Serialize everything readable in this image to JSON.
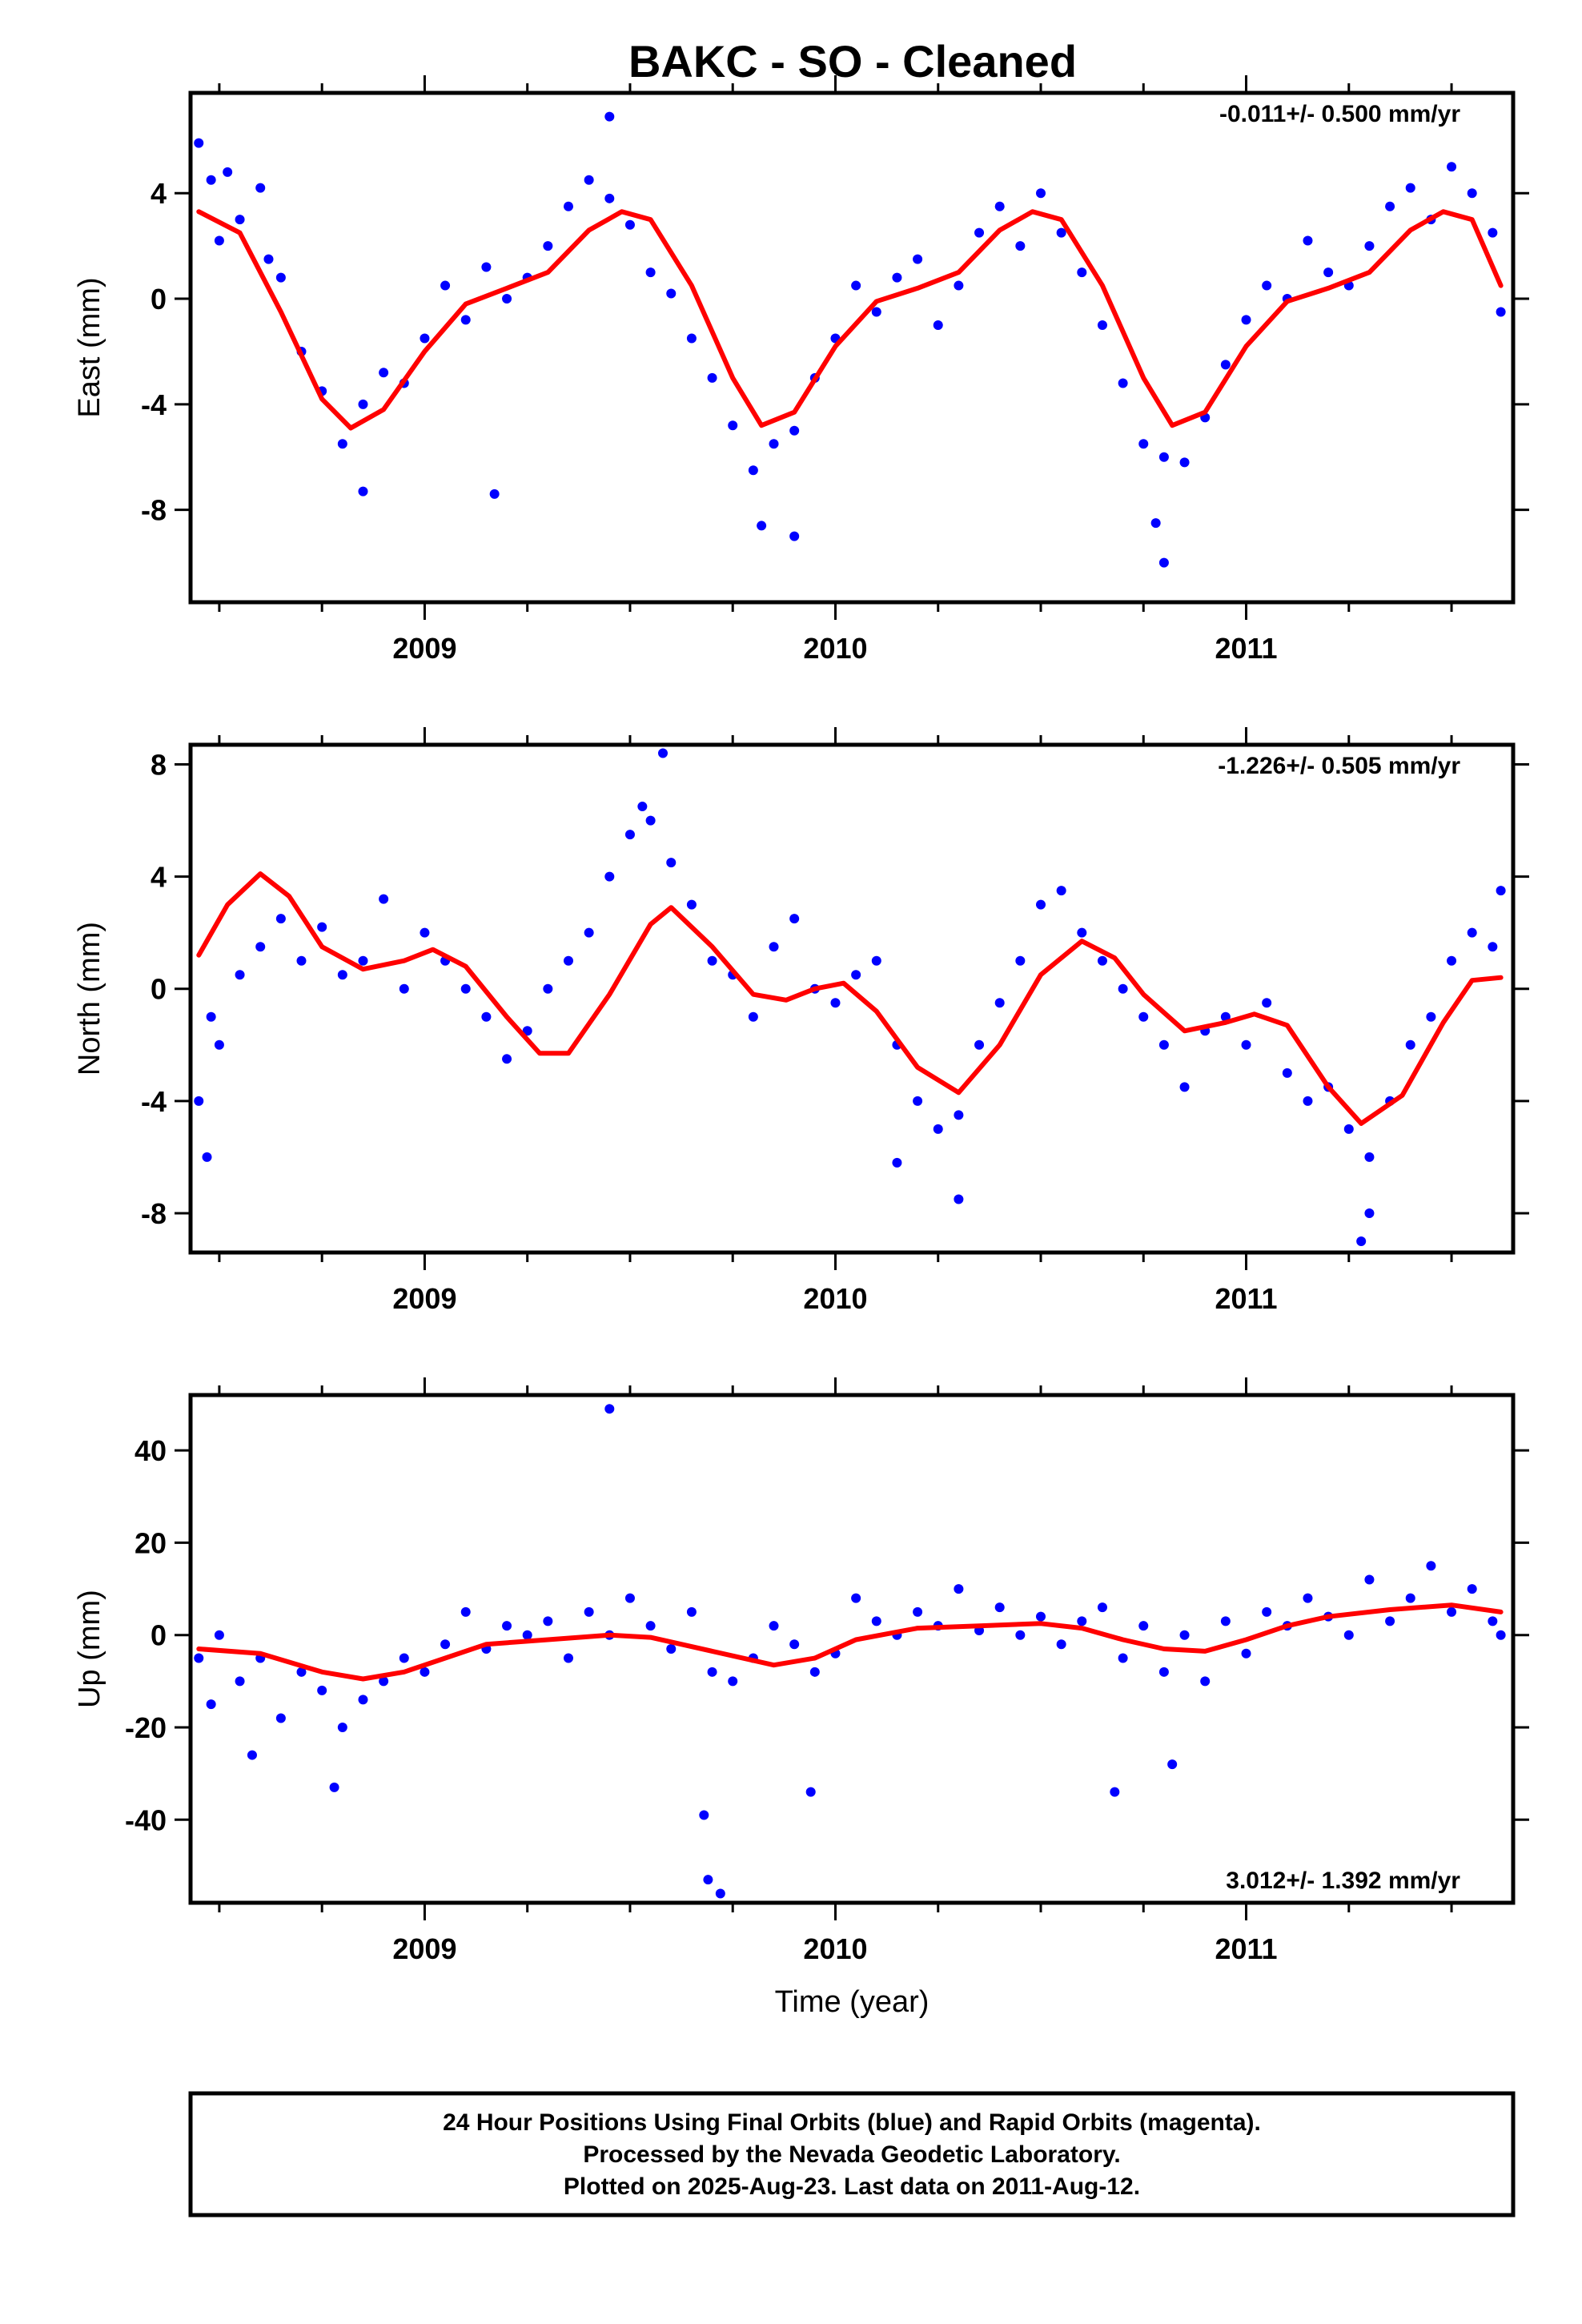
{
  "title": "BAKC  - SO - Cleaned",
  "footer": {
    "lines": [
      "24 Hour Positions Using Final Orbits (blue) and Rapid Orbits (magenta).",
      "Processed by the Nevada Geodetic Laboratory.",
      "Plotted on 2025-Aug-23. Last data on 2011-Aug-12."
    ]
  },
  "colors": {
    "points": "#0000ff",
    "fit": "#ff0000",
    "frame": "#000000"
  },
  "chart_data": [
    {
      "type": "scatter",
      "ylabel": "East (mm)",
      "xlabel": "",
      "rate_label": "-0.011+/- 0.500 mm/yr",
      "rate_position": "top-right",
      "xlim": [
        2008.43,
        2011.65
      ],
      "ylim": [
        -11.5,
        7.8
      ],
      "yticks": [
        4,
        0,
        -4,
        -8
      ],
      "xticks": [
        2009,
        2010,
        2011
      ],
      "fit_x": [
        2008.45,
        2008.55,
        2008.65,
        2008.75,
        2008.82,
        2008.9,
        2009.0,
        2009.1,
        2009.2,
        2009.3,
        2009.4,
        2009.48,
        2009.55,
        2009.65,
        2009.75,
        2009.82,
        2009.9,
        2010.0,
        2010.1,
        2010.2,
        2010.3,
        2010.4,
        2010.48,
        2010.55,
        2010.65,
        2010.75,
        2010.82,
        2010.9,
        2011.0,
        2011.1,
        2011.2,
        2011.3,
        2011.4,
        2011.48,
        2011.55,
        2011.62
      ],
      "fit_y": [
        3.3,
        2.5,
        -0.5,
        -3.8,
        -4.9,
        -4.2,
        -2.0,
        -0.2,
        0.4,
        1.0,
        2.6,
        3.3,
        3.0,
        0.5,
        -3.0,
        -4.8,
        -4.3,
        -1.8,
        -0.1,
        0.4,
        1.0,
        2.6,
        3.3,
        3.0,
        0.5,
        -3.0,
        -4.8,
        -4.3,
        -1.8,
        -0.1,
        0.4,
        1.0,
        2.6,
        3.3,
        3.0,
        0.5
      ],
      "x": [
        2008.45,
        2008.48,
        2008.5,
        2008.52,
        2008.55,
        2008.6,
        2008.62,
        2008.65,
        2008.7,
        2008.75,
        2008.8,
        2008.85,
        2008.9,
        2008.95,
        2009.0,
        2009.05,
        2009.1,
        2009.15,
        2009.2,
        2009.25,
        2009.3,
        2009.35,
        2009.4,
        2009.45,
        2009.5,
        2009.55,
        2009.6,
        2009.65,
        2009.7,
        2009.75,
        2009.8,
        2009.85,
        2009.9,
        2009.95,
        2010.0,
        2010.05,
        2010.1,
        2010.15,
        2010.2,
        2010.25,
        2010.3,
        2010.35,
        2010.4,
        2010.45,
        2010.5,
        2010.55,
        2010.6,
        2010.65,
        2010.7,
        2010.75,
        2010.8,
        2010.85,
        2010.9,
        2010.95,
        2011.0,
        2011.05,
        2011.1,
        2011.15,
        2011.2,
        2011.25,
        2011.3,
        2011.35,
        2011.4,
        2011.45,
        2011.5,
        2011.55,
        2011.6,
        2011.62,
        2009.45,
        2010.8,
        2010.78,
        2009.82,
        2009.9,
        2008.85,
        2009.17
      ],
      "y": [
        5.9,
        4.5,
        2.2,
        4.8,
        3.0,
        4.2,
        1.5,
        0.8,
        -2.0,
        -3.5,
        -5.5,
        -4.0,
        -2.8,
        -3.2,
        -1.5,
        0.5,
        -0.8,
        1.2,
        0.0,
        0.8,
        2.0,
        3.5,
        4.5,
        3.8,
        2.8,
        1.0,
        0.2,
        -1.5,
        -3.0,
        -4.8,
        -6.5,
        -5.5,
        -5.0,
        -3.0,
        -1.5,
        0.5,
        -0.5,
        0.8,
        1.5,
        -1.0,
        0.5,
        2.5,
        3.5,
        2.0,
        4.0,
        2.5,
        1.0,
        -1.0,
        -3.2,
        -5.5,
        -6.0,
        -6.2,
        -4.5,
        -2.5,
        -0.8,
        0.5,
        0.0,
        2.2,
        1.0,
        0.5,
        2.0,
        3.5,
        4.2,
        3.0,
        5.0,
        4.0,
        2.5,
        -0.5,
        6.9,
        -10.0,
        -8.5,
        -8.6,
        -9.0,
        -7.3,
        -7.4
      ]
    },
    {
      "type": "scatter",
      "ylabel": "North (mm)",
      "xlabel": "",
      "rate_label": "-1.226+/- 0.505 mm/yr",
      "rate_position": "top-right",
      "xlim": [
        2008.43,
        2011.65
      ],
      "ylim": [
        -9.4,
        8.7
      ],
      "yticks": [
        8,
        4,
        0,
        -4,
        -8
      ],
      "xticks": [
        2009,
        2010,
        2011
      ],
      "fit_x": [
        2008.45,
        2008.52,
        2008.6,
        2008.67,
        2008.75,
        2008.85,
        2008.95,
        2009.02,
        2009.1,
        2009.2,
        2009.28,
        2009.35,
        2009.45,
        2009.55,
        2009.6,
        2009.7,
        2009.8,
        2009.88,
        2009.95,
        2010.02,
        2010.1,
        2010.2,
        2010.3,
        2010.4,
        2010.5,
        2010.6,
        2010.68,
        2010.75,
        2010.85,
        2010.95,
        2011.02,
        2011.1,
        2011.2,
        2011.28,
        2011.38,
        2011.48,
        2011.55,
        2011.62
      ],
      "fit_y": [
        1.2,
        3.0,
        4.1,
        3.3,
        1.5,
        0.7,
        1.0,
        1.4,
        0.8,
        -1.0,
        -2.3,
        -2.3,
        -0.2,
        2.3,
        2.9,
        1.5,
        -0.2,
        -0.4,
        0.0,
        0.2,
        -0.8,
        -2.8,
        -3.7,
        -2.0,
        0.5,
        1.7,
        1.1,
        -0.2,
        -1.5,
        -1.2,
        -0.9,
        -1.3,
        -3.5,
        -4.8,
        -3.8,
        -1.2,
        0.3,
        0.4
      ],
      "x": [
        2008.45,
        2008.48,
        2008.5,
        2008.55,
        2008.6,
        2008.65,
        2008.7,
        2008.75,
        2008.8,
        2008.85,
        2008.9,
        2008.95,
        2009.0,
        2009.05,
        2009.1,
        2009.15,
        2009.2,
        2009.25,
        2009.3,
        2009.35,
        2009.4,
        2009.45,
        2009.5,
        2009.55,
        2009.6,
        2009.65,
        2009.7,
        2009.75,
        2009.8,
        2009.85,
        2009.9,
        2009.95,
        2010.0,
        2010.05,
        2010.1,
        2010.15,
        2010.2,
        2010.25,
        2010.3,
        2010.35,
        2010.4,
        2010.45,
        2010.5,
        2010.55,
        2010.6,
        2010.65,
        2010.7,
        2010.75,
        2010.8,
        2010.85,
        2010.9,
        2010.95,
        2011.0,
        2011.05,
        2011.1,
        2011.15,
        2011.2,
        2011.25,
        2011.3,
        2011.35,
        2011.4,
        2011.45,
        2011.5,
        2011.55,
        2011.6,
        2011.62,
        2008.47,
        2009.58,
        2009.53,
        2010.15,
        2010.3,
        2011.3,
        2011.28
      ],
      "y": [
        -4.0,
        -1.0,
        -2.0,
        0.5,
        1.5,
        2.5,
        1.0,
        2.2,
        0.5,
        1.0,
        3.2,
        0.0,
        2.0,
        1.0,
        0.0,
        -1.0,
        -2.5,
        -1.5,
        0.0,
        1.0,
        2.0,
        4.0,
        5.5,
        6.0,
        4.5,
        3.0,
        1.0,
        0.5,
        -1.0,
        1.5,
        2.5,
        0.0,
        -0.5,
        0.5,
        1.0,
        -2.0,
        -4.0,
        -5.0,
        -4.5,
        -2.0,
        -0.5,
        1.0,
        3.0,
        3.5,
        2.0,
        1.0,
        0.0,
        -1.0,
        -2.0,
        -3.5,
        -1.5,
        -1.0,
        -2.0,
        -0.5,
        -3.0,
        -4.0,
        -3.5,
        -5.0,
        -6.0,
        -4.0,
        -2.0,
        -1.0,
        1.0,
        2.0,
        1.5,
        3.5,
        -6.0,
        8.4,
        6.5,
        -6.2,
        -7.5,
        -8.0,
        -9.0
      ]
    },
    {
      "type": "scatter",
      "ylabel": "Up (mm)",
      "xlabel": "Time (year)",
      "rate_label": "3.012+/- 1.392 mm/yr",
      "rate_position": "bottom-right",
      "xlim": [
        2008.43,
        2011.65
      ],
      "ylim": [
        -58,
        52
      ],
      "yticks": [
        40,
        20,
        0,
        -20,
        -40
      ],
      "xticks": [
        2009,
        2010,
        2011
      ],
      "fit_x": [
        2008.45,
        2008.6,
        2008.75,
        2008.85,
        2008.95,
        2009.05,
        2009.15,
        2009.3,
        2009.45,
        2009.55,
        2009.7,
        2009.85,
        2009.95,
        2010.05,
        2010.2,
        2010.35,
        2010.5,
        2010.6,
        2010.7,
        2010.8,
        2010.9,
        2011.0,
        2011.1,
        2011.2,
        2011.35,
        2011.5,
        2011.62
      ],
      "fit_y": [
        -3,
        -4,
        -8,
        -9.5,
        -8,
        -5,
        -2,
        -1,
        0,
        -0.5,
        -3.5,
        -6.5,
        -5,
        -1,
        1.5,
        2,
        2.5,
        1.5,
        -1,
        -3,
        -3.5,
        -1,
        2,
        4,
        5.5,
        6.5,
        5
      ],
      "x": [
        2008.45,
        2008.48,
        2008.5,
        2008.55,
        2008.6,
        2008.65,
        2008.7,
        2008.75,
        2008.8,
        2008.85,
        2008.9,
        2008.95,
        2009.0,
        2009.05,
        2009.1,
        2009.15,
        2009.2,
        2009.25,
        2009.3,
        2009.35,
        2009.4,
        2009.45,
        2009.5,
        2009.55,
        2009.6,
        2009.65,
        2009.7,
        2009.75,
        2009.8,
        2009.85,
        2009.9,
        2009.95,
        2010.0,
        2010.05,
        2010.1,
        2010.15,
        2010.2,
        2010.25,
        2010.3,
        2010.35,
        2010.4,
        2010.45,
        2010.5,
        2010.55,
        2010.6,
        2010.65,
        2010.7,
        2010.75,
        2010.8,
        2010.85,
        2010.9,
        2010.95,
        2011.0,
        2011.05,
        2011.1,
        2011.15,
        2011.2,
        2011.25,
        2011.3,
        2011.35,
        2011.4,
        2011.45,
        2011.5,
        2011.55,
        2011.6,
        2011.62,
        2009.45,
        2009.68,
        2009.69,
        2009.72,
        2009.94,
        2010.68,
        2010.82,
        2008.78,
        2008.58
      ],
      "y": [
        -5,
        -15,
        0,
        -10,
        -5,
        -18,
        -8,
        -12,
        -20,
        -14,
        -10,
        -5,
        -8,
        -2,
        5,
        -3,
        2,
        0,
        3,
        -5,
        5,
        0,
        8,
        2,
        -3,
        5,
        -8,
        -10,
        -5,
        2,
        -2,
        -8,
        -4,
        8,
        3,
        0,
        5,
        2,
        10,
        1,
        6,
        0,
        4,
        -2,
        3,
        6,
        -5,
        2,
        -8,
        0,
        -10,
        3,
        -4,
        5,
        2,
        8,
        4,
        0,
        12,
        3,
        8,
        15,
        5,
        10,
        3,
        0,
        49,
        -39,
        -53,
        -56,
        -34,
        -34,
        -28,
        -33,
        -26
      ]
    }
  ]
}
